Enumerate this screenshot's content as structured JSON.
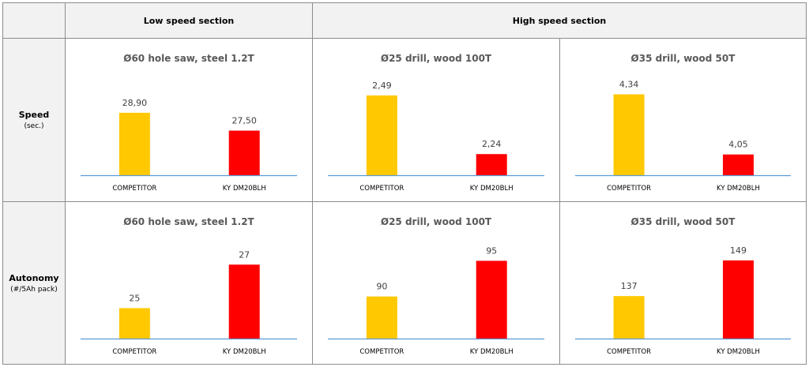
{
  "header": {
    "low": "Low speed section",
    "high": "High speed section"
  },
  "rows": [
    {
      "title": "Speed",
      "unit": "(sec.)"
    },
    {
      "title": "Autonomy",
      "unit": "(#/5Ah pack)"
    }
  ],
  "colors": {
    "competitor": "#ffc800",
    "ky": "#ff0000",
    "baseline": "#5b9bd5"
  },
  "chart_data": [
    {
      "type": "bar",
      "title": "Ø60 hole saw, steel 1.2T",
      "categories": [
        "COMPETITOR",
        "KY DM20BLH"
      ],
      "values": [
        28.9,
        27.5
      ],
      "labels": [
        "28,90",
        "27,50"
      ],
      "ylim": [
        24,
        31
      ]
    },
    {
      "type": "bar",
      "title": "Ø25 drill, wood 100T",
      "categories": [
        "COMPETITOR",
        "KY DM20BLH"
      ],
      "values": [
        2.49,
        2.24
      ],
      "labels": [
        "2,49",
        "2,24"
      ],
      "ylim": [
        2.15,
        2.53
      ]
    },
    {
      "type": "bar",
      "title": "Ø35 drill, wood 50T",
      "categories": [
        "COMPETITOR",
        "KY DM20BLH"
      ],
      "values": [
        4.34,
        4.05
      ],
      "labels": [
        "4,34",
        "4,05"
      ],
      "ylim": [
        3.95,
        4.38
      ]
    },
    {
      "type": "bar",
      "title": "Ø60 hole saw, steel 1.2T",
      "categories": [
        "COMPETITOR",
        "KY DM20BLH"
      ],
      "values": [
        25,
        27
      ],
      "labels": [
        "25",
        "27"
      ],
      "ylim": [
        23.6,
        27.7
      ]
    },
    {
      "type": "bar",
      "title": "Ø25 drill, wood 100T",
      "categories": [
        "COMPETITOR",
        "KY DM20BLH"
      ],
      "values": [
        90,
        95
      ],
      "labels": [
        "90",
        "95"
      ],
      "ylim": [
        84.1,
        96.6
      ]
    },
    {
      "type": "bar",
      "title": "Ø35 drill, wood 50T",
      "categories": [
        "COMPETITOR",
        "KY DM20BLH"
      ],
      "values": [
        137,
        149
      ],
      "labels": [
        "137",
        "149"
      ],
      "ylim": [
        122.7,
        152.7
      ]
    }
  ]
}
